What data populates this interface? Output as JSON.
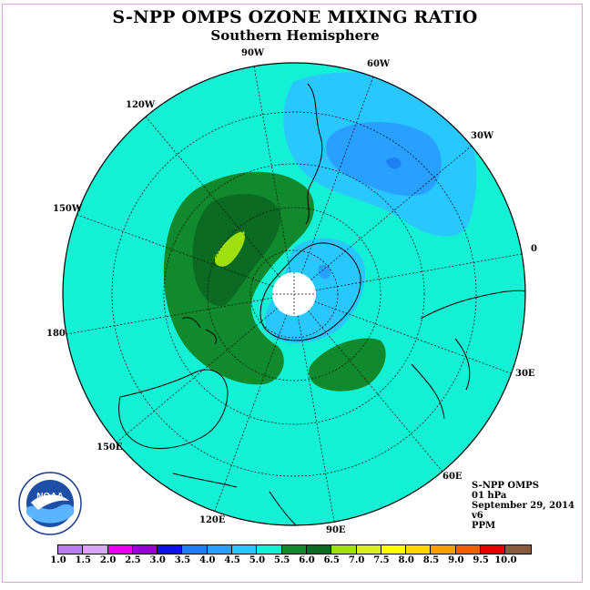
{
  "title": "S-NPP OMPS OZONE MIXING RATIO",
  "subtitle": "Southern Hemisphere",
  "longitude_labels": [
    "90W",
    "60W",
    "30W",
    "0",
    "30E",
    "60E",
    "90E",
    "120E",
    "150E",
    "180",
    "150W",
    "120W"
  ],
  "info": {
    "instrument": "S-NPP OMPS",
    "pressure": "01 hPa",
    "date": "September 29, 2014",
    "version": "v6",
    "units": "PPM"
  },
  "logo_text": "NOAA",
  "colorbar": {
    "ticks": [
      "1.0",
      "1.5",
      "2.0",
      "2.5",
      "3.0",
      "3.5",
      "4.0",
      "4.5",
      "5.0",
      "5.5",
      "6.0",
      "6.5",
      "7.0",
      "7.5",
      "8.0",
      "8.5",
      "9.0",
      "9.5",
      "10.0"
    ],
    "colors": [
      "#b87ef0",
      "#d9a6f5",
      "#f000f0",
      "#9900d6",
      "#1010e8",
      "#1e7ef5",
      "#28a0ff",
      "#28c8ff",
      "#14f0d4",
      "#108a2c",
      "#0b6b22",
      "#a0e010",
      "#d8f020",
      "#ffff00",
      "#ffd700",
      "#f5a000",
      "#f06000",
      "#e80000",
      "#8a5a3c"
    ]
  },
  "colors": {
    "background_field": "#14f0d4",
    "lightblue": "#28c8ff",
    "blue": "#28a0ff",
    "darkblue": "#1e7ef5",
    "green": "#108a2c",
    "darkgreen": "#0b6b22",
    "yellowgreen": "#a0e010",
    "polar_cap": "#ffffff"
  }
}
